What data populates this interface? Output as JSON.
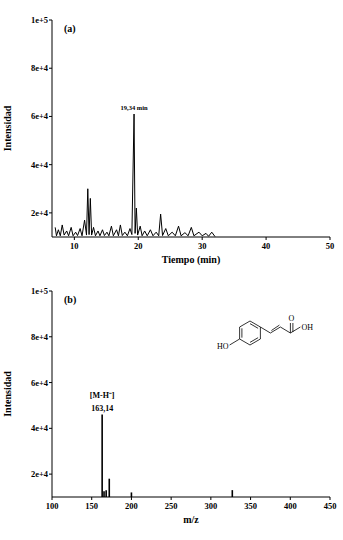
{
  "chart_data": [
    {
      "type": "line",
      "title": "(a)",
      "x_label": "Tiempo (min)",
      "y_label": "Intensidad",
      "color": "#000000",
      "x": [
        7.0,
        7.2,
        7.5,
        7.8,
        8.1,
        8.4,
        8.8,
        9.1,
        9.5,
        9.8,
        10.2,
        10.5,
        10.9,
        11.2,
        11.6,
        11.9,
        12.1,
        12.3,
        12.5,
        12.7,
        13.0,
        13.3,
        13.7,
        14.0,
        14.4,
        14.7,
        15.1,
        15.4,
        15.8,
        16.1,
        16.6,
        16.9,
        17.2,
        17.5,
        17.9,
        18.3,
        18.7,
        19.0,
        19.34,
        19.5,
        19.7,
        19.9,
        20.3,
        20.6,
        21.0,
        21.4,
        21.9,
        22.3,
        22.8,
        23.2,
        23.5,
        23.8,
        24.3,
        24.7,
        25.3,
        25.8,
        26.3,
        26.7,
        27.3,
        27.8,
        28.3,
        28.7,
        29.5,
        30.0,
        30.6,
        31.0,
        31.5,
        32.0
      ],
      "values": [
        14000,
        10500,
        13000,
        10500,
        15000,
        10800,
        12500,
        10500,
        14000,
        10500,
        12000,
        10600,
        13500,
        10500,
        17000,
        10800,
        30000,
        11000,
        26000,
        10800,
        14000,
        10500,
        12500,
        10500,
        13000,
        10600,
        12000,
        10500,
        14500,
        10500,
        13000,
        10500,
        15000,
        10600,
        12000,
        10500,
        13500,
        11000,
        61000,
        11500,
        22000,
        10800,
        14500,
        10500,
        12500,
        10500,
        13000,
        10500,
        12000,
        10500,
        19500,
        10600,
        13500,
        10500,
        12000,
        10500,
        14500,
        10500,
        11800,
        10500,
        14000,
        10500,
        12000,
        10500,
        11500,
        10300,
        12000,
        10200
      ],
      "xlim": [
        6.5,
        50
      ],
      "xticks": [
        10,
        20,
        30,
        40,
        50
      ],
      "ylim": [
        10000,
        100000
      ],
      "yticks": [
        {
          "value": 20000,
          "label": "2e+4"
        },
        {
          "value": 40000,
          "label": "4e+4"
        },
        {
          "value": 60000,
          "label": "6e+4"
        },
        {
          "value": 80000,
          "label": "8e+4"
        },
        {
          "value": 100000,
          "label": "1e+5"
        }
      ],
      "annotations": [
        {
          "text": "19,34 min",
          "x": 19.34,
          "y": 61000
        }
      ]
    },
    {
      "type": "stem",
      "title": "(b)",
      "x_label": "m/z",
      "y_label": "Intensidad",
      "color": "#000000",
      "x": [
        163.14,
        165.5,
        168.2,
        172.1,
        200.0,
        327.0
      ],
      "values": [
        46000,
        12500,
        13000,
        18000,
        12000,
        13000
      ],
      "xlim": [
        100,
        450
      ],
      "xticks": [
        100,
        150,
        200,
        250,
        300,
        350,
        400,
        450
      ],
      "ylim": [
        10000,
        100000
      ],
      "yticks": [
        {
          "value": 20000,
          "label": "2e+4"
        },
        {
          "value": 40000,
          "label": "4e+4"
        },
        {
          "value": 60000,
          "label": "6e+4"
        },
        {
          "value": 80000,
          "label": "8e+4"
        },
        {
          "value": 100000,
          "label": "1e+5"
        }
      ],
      "annotations": [
        {
          "text": "[M-H⁻]",
          "x": 163.14,
          "y": 46000
        },
        {
          "text": "163,14",
          "x": 163.14,
          "y": 46000
        },
        {
          "text": "O"
        },
        {
          "text": "OH"
        },
        {
          "text": "HO"
        }
      ]
    }
  ]
}
